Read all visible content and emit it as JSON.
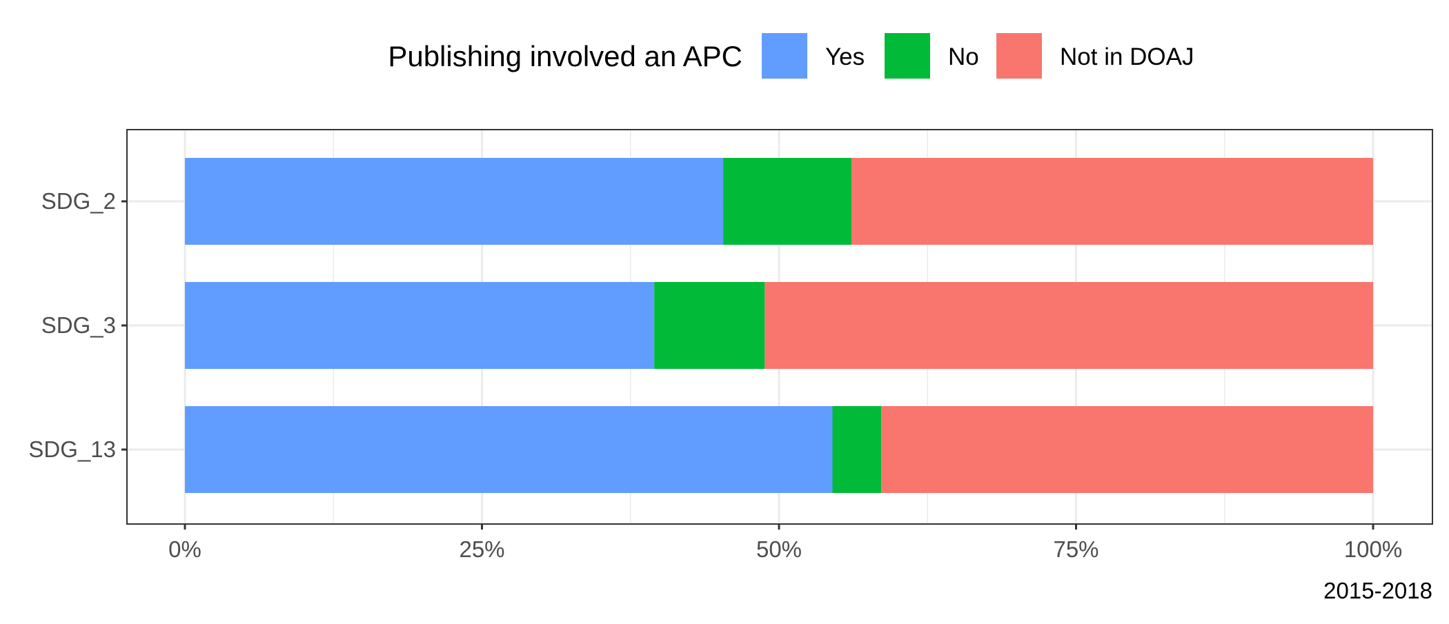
{
  "chart_data": {
    "type": "bar",
    "orientation": "horizontal",
    "stacked": true,
    "categories": [
      "SDG_2",
      "SDG_3",
      "SDG_13"
    ],
    "series": [
      {
        "name": "Yes",
        "values": [
          45.3,
          39.5,
          54.5
        ]
      },
      {
        "name": "No",
        "values": [
          10.8,
          9.3,
          4.1
        ]
      },
      {
        "name": "Not in DOAJ",
        "values": [
          43.9,
          51.2,
          41.4
        ]
      }
    ],
    "legend": {
      "title": "Publishing involved an APC",
      "position": "top"
    },
    "colors": {
      "Yes": "#619CFF",
      "No": "#00BA38",
      "Not in DOAJ": "#F8766D"
    },
    "xlim": [
      0,
      100
    ],
    "x_ticks": [
      0,
      25,
      50,
      75,
      100
    ],
    "x_tick_labels": [
      "0%",
      "25%",
      "50%",
      "75%",
      "100%"
    ],
    "grid": true,
    "caption": "2015-2018"
  }
}
